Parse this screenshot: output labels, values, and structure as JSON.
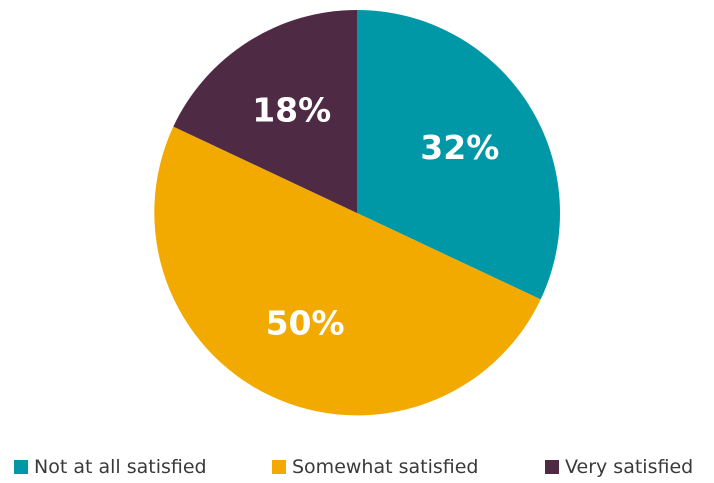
{
  "chart_data": {
    "type": "pie",
    "categories": [
      "Not at all satisfied",
      "Somewhat satisfied",
      "Very satisfied"
    ],
    "values": [
      32,
      50,
      18
    ],
    "data_labels": [
      "32%",
      "50%",
      "18%"
    ],
    "colors": [
      "#0097A7",
      "#F2A900",
      "#4F2A45"
    ],
    "legend_position": "bottom",
    "start_angle": "12 o'clock",
    "direction": "clockwise"
  }
}
